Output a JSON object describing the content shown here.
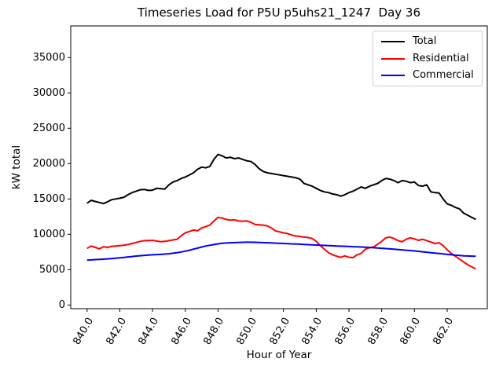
{
  "chart_data": {
    "type": "line",
    "title": "Timeseries Load for P5U p5uhs21_1247  Day 36",
    "xlabel": "Hour of Year",
    "ylabel": "kW total",
    "grid": false,
    "legend_position": "upper right",
    "xlim": [
      839.0,
      864.45
    ],
    "ylim": [
      -520,
      39480
    ],
    "xticks": [
      840,
      842,
      844,
      846,
      848,
      850,
      852,
      854,
      856,
      858,
      860,
      862
    ],
    "xtick_labels": [
      "840.0",
      "842.0",
      "844.0",
      "846.0",
      "848.0",
      "850.0",
      "852.0",
      "854.0",
      "856.0",
      "858.0",
      "860.0",
      "862.0"
    ],
    "yticks": [
      0,
      5000,
      10000,
      15000,
      20000,
      25000,
      30000,
      35000
    ],
    "ytick_labels": [
      "0",
      "5000",
      "10000",
      "15000",
      "20000",
      "25000",
      "30000",
      "35000"
    ],
    "x": [
      840.0,
      840.25,
      840.5,
      840.75,
      841.0,
      841.25,
      841.5,
      841.75,
      842.0,
      842.25,
      842.5,
      842.75,
      843.0,
      843.25,
      843.5,
      843.75,
      844.0,
      844.25,
      844.5,
      844.75,
      845.0,
      845.25,
      845.5,
      845.75,
      846.0,
      846.25,
      846.5,
      846.75,
      847.0,
      847.25,
      847.5,
      847.75,
      848.0,
      848.25,
      848.5,
      848.75,
      849.0,
      849.25,
      849.5,
      849.75,
      850.0,
      850.25,
      850.5,
      850.75,
      851.0,
      851.25,
      851.5,
      851.75,
      852.0,
      852.25,
      852.5,
      852.75,
      853.0,
      853.25,
      853.5,
      853.75,
      854.0,
      854.25,
      854.5,
      854.75,
      855.0,
      855.25,
      855.5,
      855.75,
      856.0,
      856.25,
      856.5,
      856.75,
      857.0,
      857.25,
      857.5,
      857.75,
      858.0,
      858.25,
      858.5,
      858.75,
      859.0,
      859.25,
      859.5,
      859.75,
      860.0,
      860.25,
      860.5,
      860.75,
      861.0,
      861.25,
      861.5,
      861.75,
      862.0,
      862.25,
      862.5,
      862.75,
      863.0,
      863.25,
      863.5,
      863.75
    ],
    "series": [
      {
        "name": "Total",
        "color": "#000000",
        "values": [
          14400,
          14800,
          14650,
          14500,
          14350,
          14600,
          14900,
          15000,
          15100,
          15250,
          15600,
          15900,
          16100,
          16300,
          16350,
          16200,
          16250,
          16500,
          16450,
          16400,
          17000,
          17400,
          17600,
          17900,
          18100,
          18400,
          18700,
          19200,
          19500,
          19400,
          19600,
          20600,
          21300,
          21100,
          20800,
          20900,
          20700,
          20800,
          20600,
          20400,
          20300,
          19900,
          19300,
          18900,
          18700,
          18600,
          18500,
          18400,
          18300,
          18200,
          18100,
          18000,
          17800,
          17200,
          17000,
          16800,
          16500,
          16200,
          16000,
          15900,
          15700,
          15600,
          15400,
          15600,
          15900,
          16100,
          16400,
          16700,
          16500,
          16800,
          17000,
          17200,
          17600,
          17900,
          17800,
          17600,
          17300,
          17600,
          17500,
          17300,
          17400,
          16900,
          16800,
          17000,
          16000,
          15900,
          15850,
          15000,
          14300,
          14100,
          13800,
          13600,
          13000,
          12700,
          12400,
          12100
        ]
      },
      {
        "name": "Residential",
        "color": "#ff0000",
        "values": [
          8000,
          8350,
          8150,
          7950,
          8250,
          8150,
          8300,
          8350,
          8400,
          8450,
          8550,
          8700,
          8850,
          9000,
          9100,
          9100,
          9150,
          9050,
          8950,
          9000,
          9100,
          9200,
          9300,
          9800,
          10200,
          10400,
          10600,
          10500,
          10900,
          11100,
          11300,
          11900,
          12400,
          12300,
          12100,
          12000,
          12050,
          11900,
          11850,
          11900,
          11700,
          11400,
          11350,
          11300,
          11200,
          10900,
          10500,
          10350,
          10200,
          10100,
          9900,
          9750,
          9700,
          9600,
          9550,
          9400,
          9000,
          8400,
          7900,
          7400,
          7100,
          6900,
          6750,
          6950,
          6750,
          6700,
          7100,
          7300,
          7900,
          8100,
          8200,
          8600,
          9000,
          9500,
          9600,
          9400,
          9100,
          8950,
          9300,
          9500,
          9350,
          9150,
          9300,
          9100,
          8900,
          8700,
          8800,
          8400,
          7800,
          7300,
          6900,
          6500,
          6100,
          5700,
          5400,
          5100
        ]
      },
      {
        "name": "Commercial",
        "color": "#0000ff",
        "values": [
          6350,
          6380,
          6420,
          6450,
          6480,
          6520,
          6570,
          6620,
          6680,
          6740,
          6800,
          6860,
          6920,
          6970,
          7020,
          7060,
          7100,
          7130,
          7160,
          7200,
          7250,
          7320,
          7400,
          7500,
          7620,
          7750,
          7900,
          8050,
          8200,
          8350,
          8450,
          8550,
          8650,
          8720,
          8770,
          8800,
          8830,
          8850,
          8870,
          8880,
          8880,
          8870,
          8850,
          8830,
          8800,
          8780,
          8750,
          8730,
          8700,
          8680,
          8650,
          8630,
          8600,
          8570,
          8540,
          8510,
          8480,
          8450,
          8430,
          8400,
          8380,
          8350,
          8330,
          8300,
          8280,
          8250,
          8230,
          8200,
          8170,
          8130,
          8100,
          8060,
          8020,
          7980,
          7940,
          7900,
          7850,
          7800,
          7750,
          7700,
          7650,
          7590,
          7530,
          7470,
          7400,
          7340,
          7280,
          7220,
          7160,
          7100,
          7050,
          7000,
          6960,
          6930,
          6910,
          6890
        ]
      }
    ]
  }
}
